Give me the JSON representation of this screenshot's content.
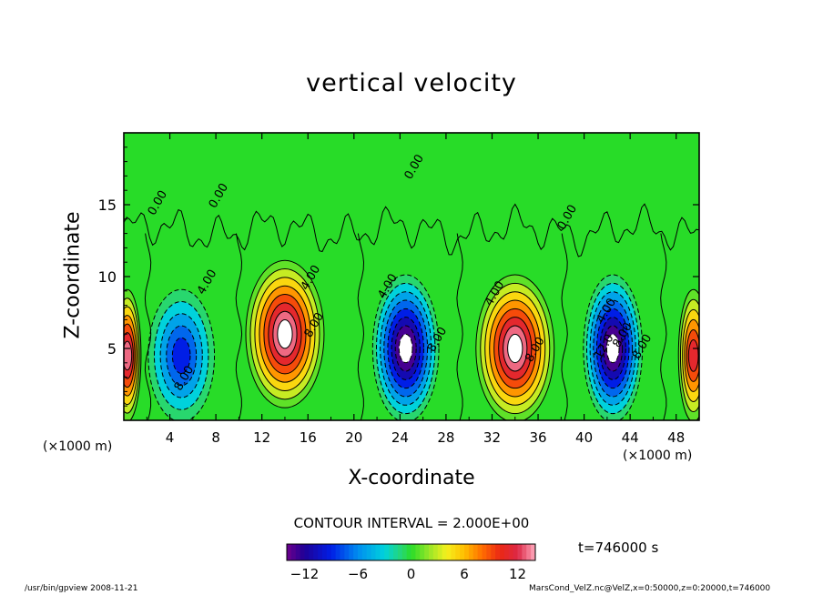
{
  "title": "vertical velocity",
  "footer": {
    "left": "/usr/bin/gpview  2008-11-21",
    "right": "MarsCond_VelZ.nc@VelZ,x=0:50000,z=0:20000,t=746000"
  },
  "chart_data": {
    "type": "contour",
    "title": "vertical velocity",
    "xlabel": "X-coordinate",
    "ylabel": "Z-coordinate",
    "x_unit": "(×1000 m)",
    "z_unit": "(×1000 m)",
    "xlim": [
      0,
      50
    ],
    "ylim": [
      0,
      20
    ],
    "x_ticks": [
      "4",
      "8",
      "12",
      "16",
      "20",
      "24",
      "28",
      "32",
      "36",
      "40",
      "44",
      "48"
    ],
    "y_ticks": [
      "5",
      "10",
      "15"
    ],
    "contour_interval": "CONTOUR INTERVAL = 2.000E+00",
    "time_label": "t=746000 s",
    "colorbar": {
      "ticks": [
        "−12",
        "−6",
        "0",
        "6",
        "12"
      ],
      "range": [
        -14,
        14
      ]
    },
    "contour_labels": [
      "0.00",
      "0.00",
      "0.00",
      "0.00",
      "4.00",
      "4.00",
      "4.00",
      "4.00",
      "4.00",
      "8.00",
      "8.00",
      "8.00",
      "8.00",
      "8.00",
      "8.00",
      "12.0"
    ],
    "cells": [
      {
        "x": 0.3,
        "z": 4.5,
        "w": 0.9,
        "h": 4.0,
        "value": 14
      },
      {
        "x": 5.0,
        "z": 4.5,
        "w": 2.5,
        "h": 4.0,
        "value": -10
      },
      {
        "x": 14.0,
        "z": 6.0,
        "w": 3.0,
        "h": 4.5,
        "value": 16
      },
      {
        "x": 24.5,
        "z": 5.0,
        "w": 2.5,
        "h": 4.5,
        "value": -16
      },
      {
        "x": 34.0,
        "z": 5.0,
        "w": 3.0,
        "h": 4.5,
        "value": 16
      },
      {
        "x": 42.5,
        "z": 5.0,
        "w": 2.2,
        "h": 4.5,
        "value": -16
      },
      {
        "x": 49.5,
        "z": 4.5,
        "w": 1.0,
        "h": 4.0,
        "value": 12
      }
    ]
  }
}
